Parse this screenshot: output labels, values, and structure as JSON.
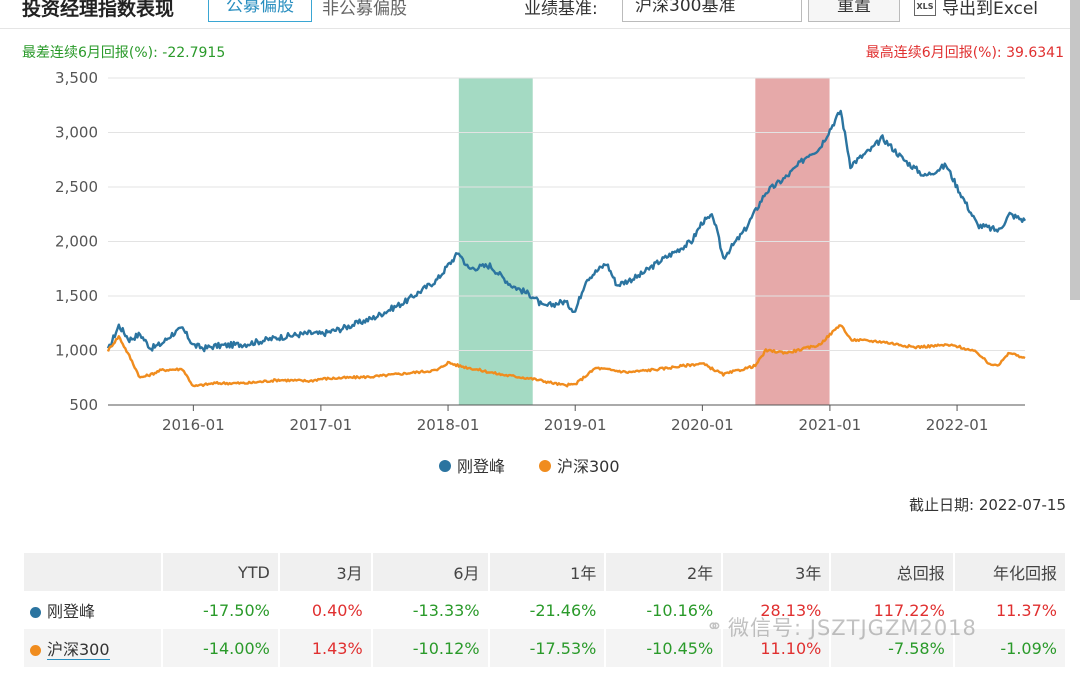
{
  "header": {
    "title": "投资经理指数表现",
    "tab_active": "公募偏股",
    "tab_other": "非公募偏股",
    "benchmark_label": "业绩基准:",
    "benchmark_value": "沪深300基准",
    "reset_label": "重置",
    "xls_icon_text": "XLS",
    "export_label": "导出到Excel"
  },
  "summary": {
    "worst": "最差连续6月回报(%): -22.7915",
    "best": "最高连续6月回报(%): 39.6341"
  },
  "chart_data": {
    "type": "line",
    "x_ticks": [
      "2016-01",
      "2017-01",
      "2018-01",
      "2019-01",
      "2020-01",
      "2021-01",
      "2022-01"
    ],
    "y_ticks": [
      "500",
      "1,000",
      "1,500",
      "2,000",
      "2,500",
      "3,000",
      "3,500"
    ],
    "ylim": [
      500,
      3500
    ],
    "xlim": [
      "2015-05-01",
      "2022-07-15"
    ],
    "shaded_regions": [
      {
        "start": "2018-02-01",
        "end": "2018-09-01",
        "color": "#9fd8c0"
      },
      {
        "start": "2020-06-01",
        "end": "2020-12-31",
        "color": "#e5a4a4"
      }
    ],
    "series": [
      {
        "name": "刚登峰",
        "color": "#2b74a0",
        "points": [
          [
            "2015-05-01",
            1000
          ],
          [
            "2015-06-01",
            1230
          ],
          [
            "2015-07-01",
            1100
          ],
          [
            "2015-08-01",
            1150
          ],
          [
            "2015-09-01",
            1020
          ],
          [
            "2015-10-01",
            1060
          ],
          [
            "2015-11-01",
            1150
          ],
          [
            "2015-12-01",
            1200
          ],
          [
            "2016-01-01",
            1050
          ],
          [
            "2016-02-01",
            1020
          ],
          [
            "2016-03-01",
            1040
          ],
          [
            "2016-06-01",
            1060
          ],
          [
            "2016-09-01",
            1120
          ],
          [
            "2016-12-01",
            1160
          ],
          [
            "2017-01-01",
            1150
          ],
          [
            "2017-03-01",
            1200
          ],
          [
            "2017-06-01",
            1300
          ],
          [
            "2017-09-01",
            1450
          ],
          [
            "2017-12-01",
            1650
          ],
          [
            "2018-01-01",
            1780
          ],
          [
            "2018-02-01",
            1900
          ],
          [
            "2018-03-01",
            1750
          ],
          [
            "2018-05-01",
            1780
          ],
          [
            "2018-07-01",
            1600
          ],
          [
            "2018-09-01",
            1500
          ],
          [
            "2018-10-01",
            1400
          ],
          [
            "2018-12-01",
            1450
          ],
          [
            "2019-01-01",
            1360
          ],
          [
            "2019-02-01",
            1650
          ],
          [
            "2019-04-01",
            1800
          ],
          [
            "2019-05-01",
            1600
          ],
          [
            "2019-07-01",
            1680
          ],
          [
            "2019-09-01",
            1820
          ],
          [
            "2019-12-01",
            2000
          ],
          [
            "2020-01-01",
            2180
          ],
          [
            "2020-02-01",
            2230
          ],
          [
            "2020-03-01",
            1850
          ],
          [
            "2020-05-01",
            2100
          ],
          [
            "2020-07-01",
            2450
          ],
          [
            "2020-09-01",
            2600
          ],
          [
            "2020-11-01",
            2800
          ],
          [
            "2020-12-01",
            2850
          ],
          [
            "2021-02-01",
            3200
          ],
          [
            "2021-03-01",
            2700
          ],
          [
            "2021-05-01",
            2850
          ],
          [
            "2021-06-01",
            2950
          ],
          [
            "2021-08-01",
            2750
          ],
          [
            "2021-10-01",
            2600
          ],
          [
            "2021-12-01",
            2700
          ],
          [
            "2022-01-01",
            2500
          ],
          [
            "2022-03-01",
            2150
          ],
          [
            "2022-05-01",
            2100
          ],
          [
            "2022-06-01",
            2250
          ],
          [
            "2022-07-15",
            2190
          ]
        ]
      },
      {
        "name": "沪深300",
        "color": "#f08c1e",
        "points": [
          [
            "2015-05-01",
            1000
          ],
          [
            "2015-06-01",
            1130
          ],
          [
            "2015-07-01",
            950
          ],
          [
            "2015-08-01",
            750
          ],
          [
            "2015-09-01",
            780
          ],
          [
            "2015-10-01",
            820
          ],
          [
            "2015-12-01",
            830
          ],
          [
            "2016-01-01",
            670
          ],
          [
            "2016-03-01",
            700
          ],
          [
            "2016-06-01",
            700
          ],
          [
            "2016-09-01",
            730
          ],
          [
            "2016-12-01",
            720
          ],
          [
            "2017-01-01",
            740
          ],
          [
            "2017-06-01",
            760
          ],
          [
            "2017-12-01",
            820
          ],
          [
            "2018-01-01",
            890
          ],
          [
            "2018-02-01",
            860
          ],
          [
            "2018-06-01",
            780
          ],
          [
            "2018-09-01",
            740
          ],
          [
            "2018-12-01",
            680
          ],
          [
            "2019-01-01",
            690
          ],
          [
            "2019-03-01",
            840
          ],
          [
            "2019-06-01",
            800
          ],
          [
            "2019-09-01",
            830
          ],
          [
            "2019-12-01",
            870
          ],
          [
            "2020-01-01",
            880
          ],
          [
            "2020-03-01",
            780
          ],
          [
            "2020-06-01",
            860
          ],
          [
            "2020-07-01",
            1000
          ],
          [
            "2020-09-01",
            980
          ],
          [
            "2020-12-01",
            1050
          ],
          [
            "2021-02-01",
            1240
          ],
          [
            "2021-03-01",
            1100
          ],
          [
            "2021-06-01",
            1080
          ],
          [
            "2021-09-01",
            1030
          ],
          [
            "2021-12-01",
            1050
          ],
          [
            "2022-01-01",
            1040
          ],
          [
            "2022-03-01",
            980
          ],
          [
            "2022-04-01",
            880
          ],
          [
            "2022-05-01",
            870
          ],
          [
            "2022-06-01",
            980
          ],
          [
            "2022-07-15",
            930
          ]
        ]
      }
    ],
    "legend": [
      "刚登峰",
      "沪深300"
    ]
  },
  "as_of": "截止日期: 2022-07-15",
  "table": {
    "headers": [
      "",
      "YTD",
      "3月",
      "6月",
      "1年",
      "2年",
      "3年",
      "总回报",
      "年化回报"
    ],
    "rows": [
      {
        "name": "刚登峰",
        "color": "#2b74a0",
        "values": [
          "-17.50%",
          "0.40%",
          "-13.33%",
          "-21.46%",
          "-10.16%",
          "28.13%",
          "117.22%",
          "11.37%"
        ]
      },
      {
        "name": "沪深300",
        "color": "#f08c1e",
        "values": [
          "-14.00%",
          "1.43%",
          "-10.12%",
          "-17.53%",
          "-10.45%",
          "11.10%",
          "-7.58%",
          "-1.09%"
        ]
      }
    ]
  },
  "watermark": "微信号: JSZTJGZM2018"
}
